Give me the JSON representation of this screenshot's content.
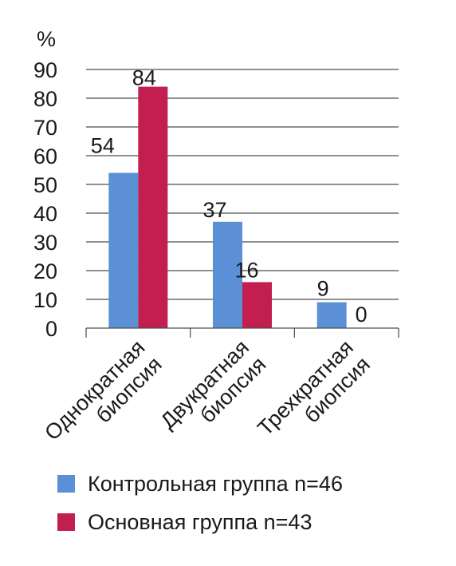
{
  "chart_data": {
    "type": "bar",
    "ylabel": "%",
    "ylim": [
      0,
      90
    ],
    "yticks": [
      0,
      10,
      20,
      30,
      40,
      50,
      60,
      70,
      80,
      90
    ],
    "grid": true,
    "legend_position": "bottom",
    "categories": [
      [
        "Однократная",
        "биопсия"
      ],
      [
        "Двукратная",
        "биопсия"
      ],
      [
        "Трехкратная",
        "биопсия"
      ]
    ],
    "series": [
      {
        "name": "Контрольная группа n=46",
        "color": "#5b8fd6",
        "values": [
          54,
          37,
          9
        ]
      },
      {
        "name": "Основная группа n=43",
        "color": "#c21e4f",
        "values": [
          84,
          16,
          0
        ]
      }
    ]
  }
}
